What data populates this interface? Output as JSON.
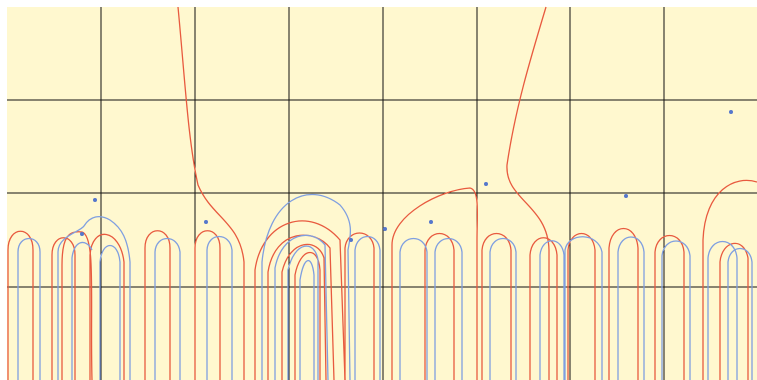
{
  "colors": {
    "background": "#fff8cf",
    "grid": "#111111",
    "red_curve": "#e85a3f",
    "blue_curve": "#7f9fe0",
    "point": "#5577cc",
    "page": "#ffffff"
  },
  "plot": {
    "grid": true,
    "vertical_lines": 7,
    "horizontal_lines": 3,
    "zero_points_count": 11
  }
}
